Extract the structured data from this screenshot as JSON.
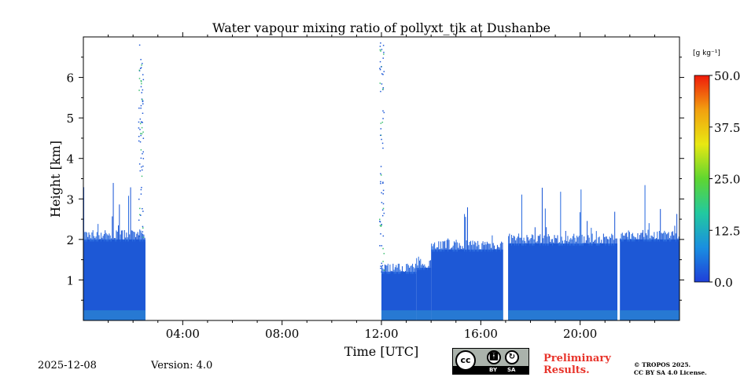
{
  "chart_data": {
    "type": "heatmap",
    "title": "Water vapour mixing ratio of pollyxt_tjk at Dushanbe",
    "xlabel": "Time [UTC]",
    "ylabel": "Height [km]",
    "xlim": [
      0,
      24
    ],
    "ylim": [
      0,
      7
    ],
    "x_ticks": [
      {
        "value": 4,
        "label": "04:00"
      },
      {
        "value": 8,
        "label": "08:00"
      },
      {
        "value": 12,
        "label": "12:00"
      },
      {
        "value": 16,
        "label": "16:00"
      },
      {
        "value": 20,
        "label": "20:00"
      }
    ],
    "y_ticks": [
      {
        "value": 1,
        "label": "1"
      },
      {
        "value": 2,
        "label": "2"
      },
      {
        "value": 3,
        "label": "3"
      },
      {
        "value": 4,
        "label": "4"
      },
      {
        "value": 5,
        "label": "5"
      },
      {
        "value": 6,
        "label": "6"
      }
    ],
    "colorbar": {
      "label": "[g kg⁻¹]",
      "min": 0.0,
      "max": 50.0,
      "ticks": [
        "0.0",
        "12.5",
        "25.0",
        "37.5",
        "50.0"
      ],
      "colormap": [
        "#1f3fd9",
        "#1a8fe0",
        "#22c9a0",
        "#5fd630",
        "#e8e812",
        "#f2a010",
        "#ef1a0a"
      ]
    },
    "data_segments": [
      {
        "start": 0.0,
        "end": 2.5,
        "top_km": 2.0,
        "max_km": 3.4
      },
      {
        "start": 12.0,
        "end": 13.4,
        "top_km": 1.2,
        "max_km": 1.4
      },
      {
        "start": 13.4,
        "end": 14.0,
        "top_km": 1.3,
        "max_km": 1.6
      },
      {
        "start": 14.0,
        "end": 16.9,
        "top_km": 1.75,
        "max_km": 2.8
      },
      {
        "start": 17.1,
        "end": 21.5,
        "top_km": 1.9,
        "max_km": 3.3
      },
      {
        "start": 21.6,
        "end": 24.0,
        "top_km": 2.0,
        "max_km": 3.5
      }
    ],
    "sparse_columns": [
      {
        "time": 2.3,
        "from_km": 2.0,
        "to_km": 6.9
      },
      {
        "time": 12.0,
        "from_km": 1.2,
        "to_km": 6.9
      }
    ]
  },
  "footer": {
    "date": "2025-12-08",
    "version": "Version: 4.0",
    "preliminary": "Preliminary Results.",
    "copyright_line1": "© TROPOS 2025.",
    "copyright_line2": "CC BY SA 4.0 License."
  },
  "license_badge": {
    "logo": "cc",
    "by": "BY",
    "sa": "SA"
  }
}
